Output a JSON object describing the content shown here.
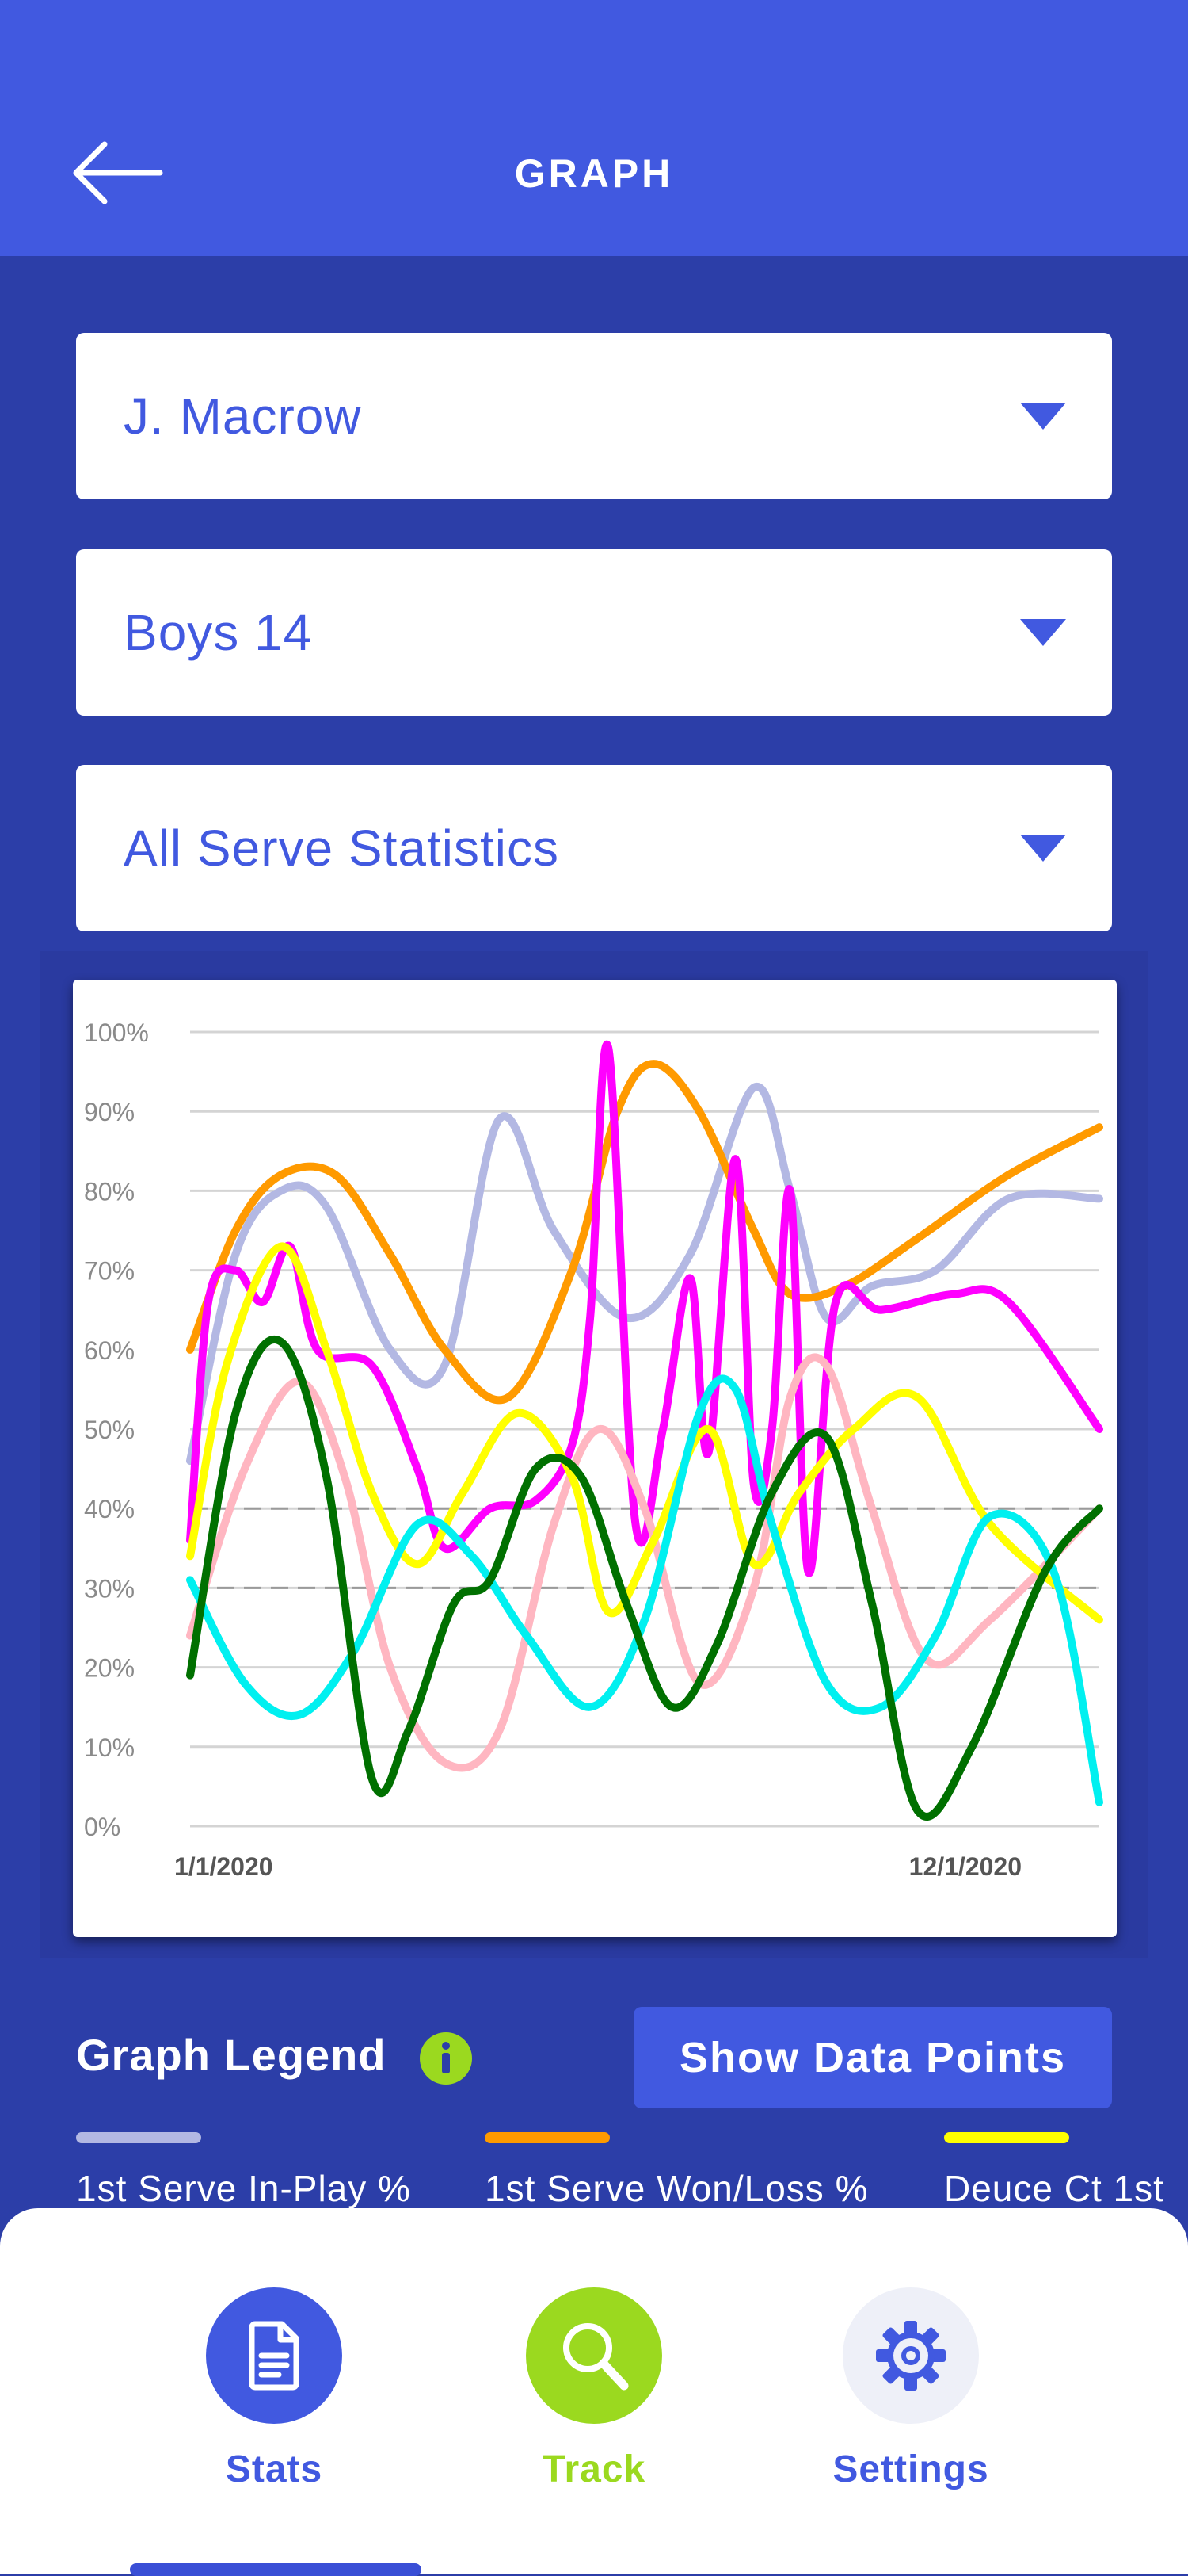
{
  "header": {
    "title": "GRAPH",
    "back_icon": "arrow-left-icon"
  },
  "dropdowns": [
    {
      "value": "J. Macrow"
    },
    {
      "value": "Boys 14"
    },
    {
      "value": "All Serve Statistics"
    }
  ],
  "chart_data": {
    "type": "line",
    "x_start_label": "1/1/2020",
    "x_end_label": "12/1/2020",
    "ylim": [
      0,
      100
    ],
    "y_ticks": [
      "100%",
      "90%",
      "80%",
      "70%",
      "60%",
      "50%",
      "40%",
      "30%",
      "20%",
      "10%",
      "0%"
    ],
    "reference_lines": [
      40,
      30
    ],
    "grid": true,
    "series": [
      {
        "color": "#b3b8e3",
        "values": [
          [
            0,
            46
          ],
          [
            5,
            72
          ],
          [
            10,
            80
          ],
          [
            15,
            78
          ],
          [
            22,
            60
          ],
          [
            28,
            58
          ],
          [
            34,
            89
          ],
          [
            40,
            75
          ],
          [
            48,
            64
          ],
          [
            55,
            72
          ],
          [
            62,
            93
          ],
          [
            66,
            80
          ],
          [
            70,
            64
          ],
          [
            75,
            68
          ],
          [
            82,
            70
          ],
          [
            90,
            79
          ],
          [
            100,
            79
          ]
        ]
      },
      {
        "color": "#ff9a00",
        "values": [
          [
            0,
            60
          ],
          [
            5,
            75
          ],
          [
            10,
            82
          ],
          [
            16,
            82
          ],
          [
            22,
            72
          ],
          [
            28,
            60
          ],
          [
            35,
            54
          ],
          [
            42,
            70
          ],
          [
            47,
            90
          ],
          [
            51,
            96
          ],
          [
            56,
            90
          ],
          [
            62,
            75
          ],
          [
            66,
            67
          ],
          [
            72,
            68
          ],
          [
            80,
            74
          ],
          [
            90,
            82
          ],
          [
            100,
            88
          ]
        ]
      },
      {
        "color": "#ff00ff",
        "values": [
          [
            0,
            36
          ],
          [
            2,
            66
          ],
          [
            5,
            70
          ],
          [
            8,
            66
          ],
          [
            11,
            73
          ],
          [
            14,
            60
          ],
          [
            20,
            58
          ],
          [
            25,
            45
          ],
          [
            28,
            35
          ],
          [
            33,
            40
          ],
          [
            38,
            41
          ],
          [
            42,
            48
          ],
          [
            44,
            64
          ],
          [
            46,
            98
          ],
          [
            49,
            38
          ],
          [
            52,
            50
          ],
          [
            55,
            69
          ],
          [
            57,
            47
          ],
          [
            60,
            84
          ],
          [
            62,
            43
          ],
          [
            64,
            50
          ],
          [
            66,
            80
          ],
          [
            68,
            32
          ],
          [
            71,
            66
          ],
          [
            76,
            65
          ],
          [
            84,
            67
          ],
          [
            90,
            66
          ],
          [
            100,
            50
          ]
        ]
      },
      {
        "color": "#ffb6c1",
        "values": [
          [
            0,
            24
          ],
          [
            6,
            45
          ],
          [
            12,
            56
          ],
          [
            17,
            44
          ],
          [
            22,
            20
          ],
          [
            28,
            8
          ],
          [
            34,
            12
          ],
          [
            40,
            38
          ],
          [
            45,
            50
          ],
          [
            50,
            40
          ],
          [
            56,
            18
          ],
          [
            62,
            30
          ],
          [
            66,
            54
          ],
          [
            70,
            58
          ],
          [
            75,
            40
          ],
          [
            81,
            21
          ],
          [
            88,
            26
          ],
          [
            100,
            40
          ]
        ]
      },
      {
        "color": "#ffff00",
        "values": [
          [
            0,
            34
          ],
          [
            4,
            58
          ],
          [
            10,
            73
          ],
          [
            15,
            60
          ],
          [
            20,
            42
          ],
          [
            25,
            33
          ],
          [
            30,
            42
          ],
          [
            36,
            52
          ],
          [
            42,
            44
          ],
          [
            46,
            27
          ],
          [
            51,
            36
          ],
          [
            57,
            50
          ],
          [
            62,
            33
          ],
          [
            67,
            42
          ],
          [
            73,
            50
          ],
          [
            80,
            54
          ],
          [
            88,
            38
          ],
          [
            100,
            26
          ]
        ]
      },
      {
        "color": "#00f0f0",
        "values": [
          [
            0,
            31
          ],
          [
            6,
            18
          ],
          [
            12,
            14
          ],
          [
            18,
            22
          ],
          [
            25,
            38
          ],
          [
            31,
            34
          ],
          [
            37,
            24
          ],
          [
            44,
            15
          ],
          [
            50,
            26
          ],
          [
            56,
            52
          ],
          [
            60,
            55
          ],
          [
            64,
            38
          ],
          [
            70,
            18
          ],
          [
            76,
            15
          ],
          [
            82,
            24
          ],
          [
            88,
            39
          ],
          [
            95,
            32
          ],
          [
            100,
            3
          ]
        ]
      },
      {
        "color": "#007000",
        "values": [
          [
            0,
            19
          ],
          [
            5,
            52
          ],
          [
            10,
            61
          ],
          [
            15,
            44
          ],
          [
            20,
            6
          ],
          [
            24,
            12
          ],
          [
            29,
            28
          ],
          [
            33,
            31
          ],
          [
            38,
            45
          ],
          [
            43,
            44
          ],
          [
            48,
            28
          ],
          [
            53,
            15
          ],
          [
            58,
            23
          ],
          [
            64,
            42
          ],
          [
            70,
            49
          ],
          [
            75,
            28
          ],
          [
            80,
            2
          ],
          [
            86,
            10
          ],
          [
            94,
            32
          ],
          [
            100,
            40
          ]
        ]
      }
    ]
  },
  "legend": {
    "title": "Graph Legend",
    "info_icon": "info-icon",
    "show_button": "Show Data Points",
    "items": [
      {
        "color": "#b3b8e3",
        "label": "1st Serve In-Play %"
      },
      {
        "color": "#ff9a00",
        "label": "1st Serve Won/Loss %"
      },
      {
        "color": "#ffff00",
        "label": "Deuce Ct 1st"
      }
    ]
  },
  "nav": {
    "items": [
      {
        "label": "Stats",
        "icon": "document-icon",
        "color": "#4159e0",
        "bg": "#4159e0"
      },
      {
        "label": "Track",
        "icon": "magnifier-icon",
        "color": "#9bd91f",
        "bg": "#9bd91f"
      },
      {
        "label": "Settings",
        "icon": "gear-icon",
        "color": "#4159e0",
        "bg": "#eef0f8"
      }
    ]
  }
}
